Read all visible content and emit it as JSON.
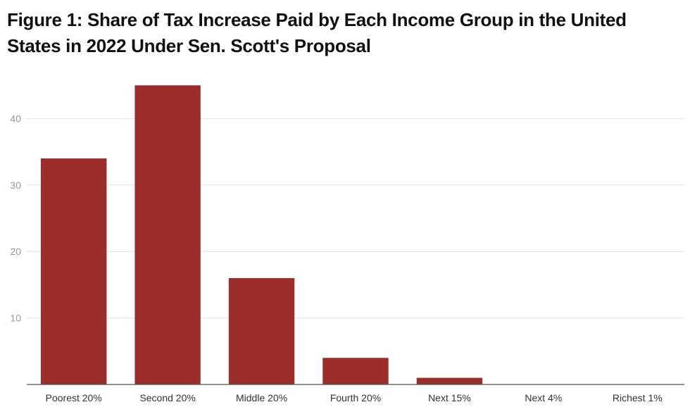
{
  "chart_data": {
    "type": "bar",
    "title": "Figure 1: Share of Tax Increase Paid by Each Income Group in the United States in 2022 Under Sen. Scott's Proposal",
    "xlabel": "",
    "ylabel": "",
    "categories": [
      "Poorest 20%",
      "Second 20%",
      "Middle 20%",
      "Fourth 20%",
      "Next 15%",
      "Next 4%",
      "Richest 1%"
    ],
    "values": [
      34,
      45,
      16,
      4,
      1,
      0,
      0
    ],
    "ylim": [
      0,
      45
    ],
    "yticks": [
      10,
      20,
      30,
      40
    ],
    "grid": true,
    "legend": "none",
    "colors": {
      "bar": "#9b2d2b",
      "grid": "#e3e3e3",
      "axis": "#555555"
    }
  }
}
